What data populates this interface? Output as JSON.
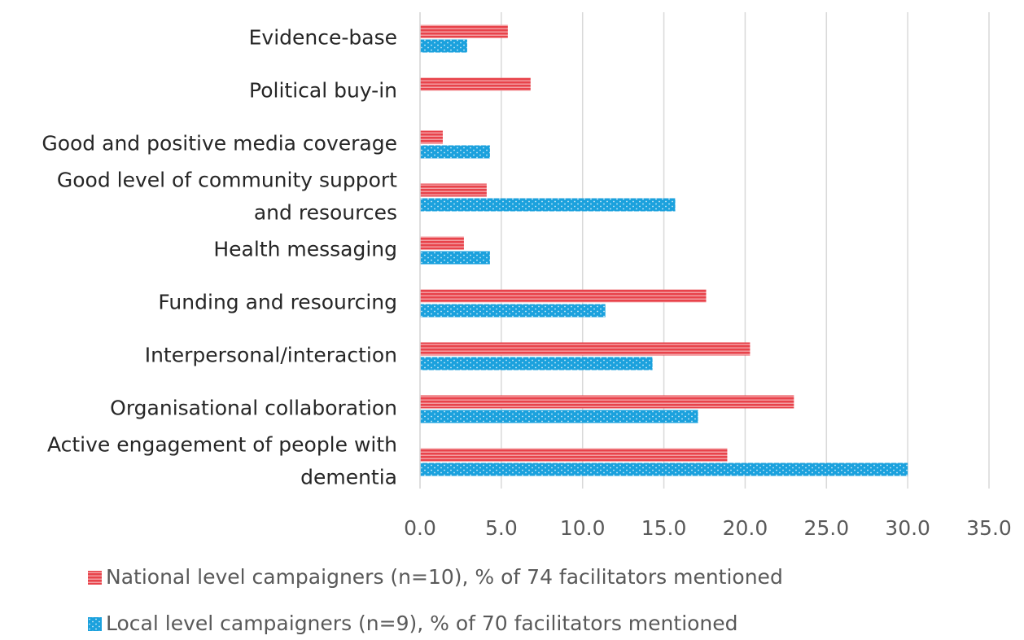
{
  "chart_data": {
    "type": "bar",
    "orientation": "horizontal",
    "categories": [
      "Evidence-base",
      "Political buy-in",
      "Good and positive media coverage",
      [
        "Good level of community support",
        "and resources"
      ],
      "Health messaging",
      "Funding and resourcing",
      "Interpersonal/interaction",
      "Organisational collaboration",
      [
        "Active engagement of people with",
        "dementia"
      ]
    ],
    "series": [
      {
        "name": "National level campaigners (n=10), % of 74 facilitators mentioned",
        "color": "#e8434b",
        "pattern": "stripes",
        "values": [
          5.4,
          6.8,
          1.4,
          4.1,
          2.7,
          17.6,
          20.3,
          23.0,
          18.9
        ]
      },
      {
        "name": "Local level campaigners (n=9), % of 70 facilitators mentioned",
        "color": "#1ba1dd",
        "pattern": "dots",
        "values": [
          2.9,
          0,
          4.3,
          15.7,
          4.3,
          11.4,
          14.3,
          17.1,
          30.0
        ]
      }
    ],
    "xlim": [
      0,
      35
    ],
    "xticks": [
      {
        "value": 0,
        "label": "0.0"
      },
      {
        "value": 5,
        "label": "5.0"
      },
      {
        "value": 10,
        "label": "10.0"
      },
      {
        "value": 15,
        "label": "15.0"
      },
      {
        "value": 20,
        "label": "20.0"
      },
      {
        "value": 25,
        "label": "25.0"
      },
      {
        "value": 30,
        "label": "30.0"
      },
      {
        "value": 35,
        "label": "35.0"
      }
    ],
    "grid": true,
    "legend": "bottom"
  }
}
